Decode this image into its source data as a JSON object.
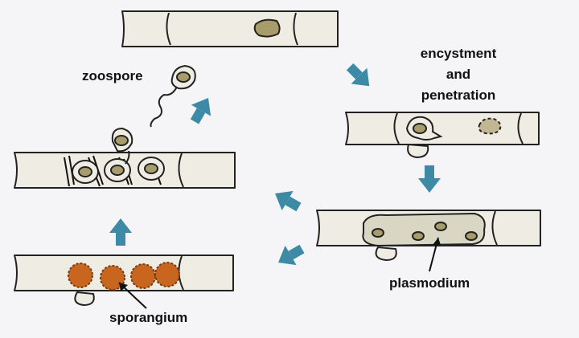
{
  "labels": {
    "zoospore": "zoospore",
    "encystment_line1": "encystment",
    "encystment_line2": "and",
    "encystment_line3": "penetration",
    "plasmodium": "plasmodium",
    "sporangium": "sporangium"
  },
  "colors": {
    "background": "#f5f5f7",
    "cell_fill": "#efede3",
    "outline": "#222222",
    "nucleus": "#a79c6a",
    "plasmodium_fill": "#d9d7c4",
    "sporangium": "#c8661f",
    "arrow": "#3d8aa6"
  },
  "icons": {
    "arrow": "thick-block-arrow",
    "sporangium": "spiky-orange-ball"
  }
}
